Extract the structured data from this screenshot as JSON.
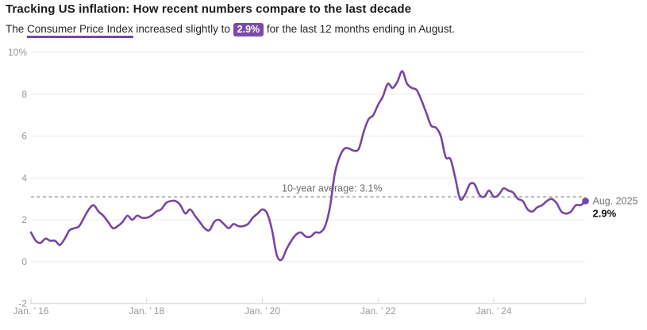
{
  "header": {
    "title": "Tracking US inflation: How recent numbers compare to the last decade",
    "subtitle": {
      "prefix": "The ",
      "linked_term": "Consumer Price Index",
      "middle": " increased slightly to ",
      "badge": "2.9%",
      "suffix": " for the last 12 months ending in August."
    }
  },
  "chart_data": {
    "type": "line",
    "x_unit": "month",
    "x_range": [
      "Jan 2016",
      "Aug 2025"
    ],
    "ylim": [
      -2,
      10
    ],
    "grid": true,
    "legend": "none",
    "series": [
      {
        "name": "Consumer Price Index, year-over-year % change",
        "values": [
          1.4,
          1.0,
          0.9,
          1.1,
          1.0,
          1.0,
          0.8,
          1.1,
          1.5,
          1.6,
          1.7,
          2.1,
          2.5,
          2.7,
          2.4,
          2.2,
          1.9,
          1.6,
          1.7,
          1.9,
          2.2,
          2.0,
          2.2,
          2.1,
          2.1,
          2.2,
          2.4,
          2.5,
          2.8,
          2.9,
          2.9,
          2.7,
          2.3,
          2.5,
          2.2,
          1.9,
          1.6,
          1.5,
          1.9,
          2.0,
          1.8,
          1.6,
          1.8,
          1.7,
          1.7,
          1.8,
          2.1,
          2.3,
          2.5,
          2.3,
          1.5,
          0.3,
          0.1,
          0.6,
          1.0,
          1.3,
          1.4,
          1.2,
          1.2,
          1.4,
          1.4,
          1.7,
          2.6,
          4.2,
          5.0,
          5.4,
          5.4,
          5.3,
          5.4,
          6.2,
          6.8,
          7.0,
          7.5,
          7.9,
          8.5,
          8.3,
          8.6,
          9.1,
          8.5,
          8.3,
          8.2,
          7.7,
          7.1,
          6.5,
          6.4,
          6.0,
          5.0,
          4.9,
          4.0,
          3.0,
          3.2,
          3.7,
          3.7,
          3.2,
          3.1,
          3.4,
          3.1,
          3.2,
          3.5,
          3.4,
          3.3,
          3.0,
          2.9,
          2.5,
          2.4,
          2.6,
          2.7,
          2.9,
          3.0,
          2.8,
          2.4,
          2.3,
          2.4,
          2.7,
          2.7,
          2.9
        ]
      }
    ],
    "x_ticks": [
      {
        "month_index": 0,
        "label": "Jan. ’ 16"
      },
      {
        "month_index": 24,
        "label": "Jan. ’ 18"
      },
      {
        "month_index": 48,
        "label": "Jan. ’ 20"
      },
      {
        "month_index": 72,
        "label": "Jan. ’ 22"
      },
      {
        "month_index": 96,
        "label": "Jan. ’ 24"
      }
    ],
    "y_ticks": [
      {
        "value": 10,
        "label": "10%"
      },
      {
        "value": 8,
        "label": "8"
      },
      {
        "value": 6,
        "label": "6"
      },
      {
        "value": 4,
        "label": "4"
      },
      {
        "value": 2,
        "label": "2"
      },
      {
        "value": 0,
        "label": "0"
      },
      {
        "value": -2,
        "label": "-2"
      }
    ],
    "average_line": {
      "value": 3.1,
      "label": "10-year average: 3.1%",
      "style": "dashed"
    },
    "end_annotation": {
      "date_label": "Aug. 2025",
      "value_label": "2.9%",
      "value": 2.9
    }
  },
  "colors": {
    "accent_purple": "#7845a4",
    "line": "#7845a4",
    "badge_bg": "#7b4ba6",
    "badge_text": "#ffffff",
    "grid": "#ececec",
    "axis": "#d7d7d7",
    "tick_label": "#999999",
    "avg_line": "#8f8f8f",
    "avg_label": "#6d6d6d",
    "annotation_date": "#757575",
    "annotation_value": "#111111",
    "title": "#1a1a1a",
    "subtitle": "#262626"
  }
}
